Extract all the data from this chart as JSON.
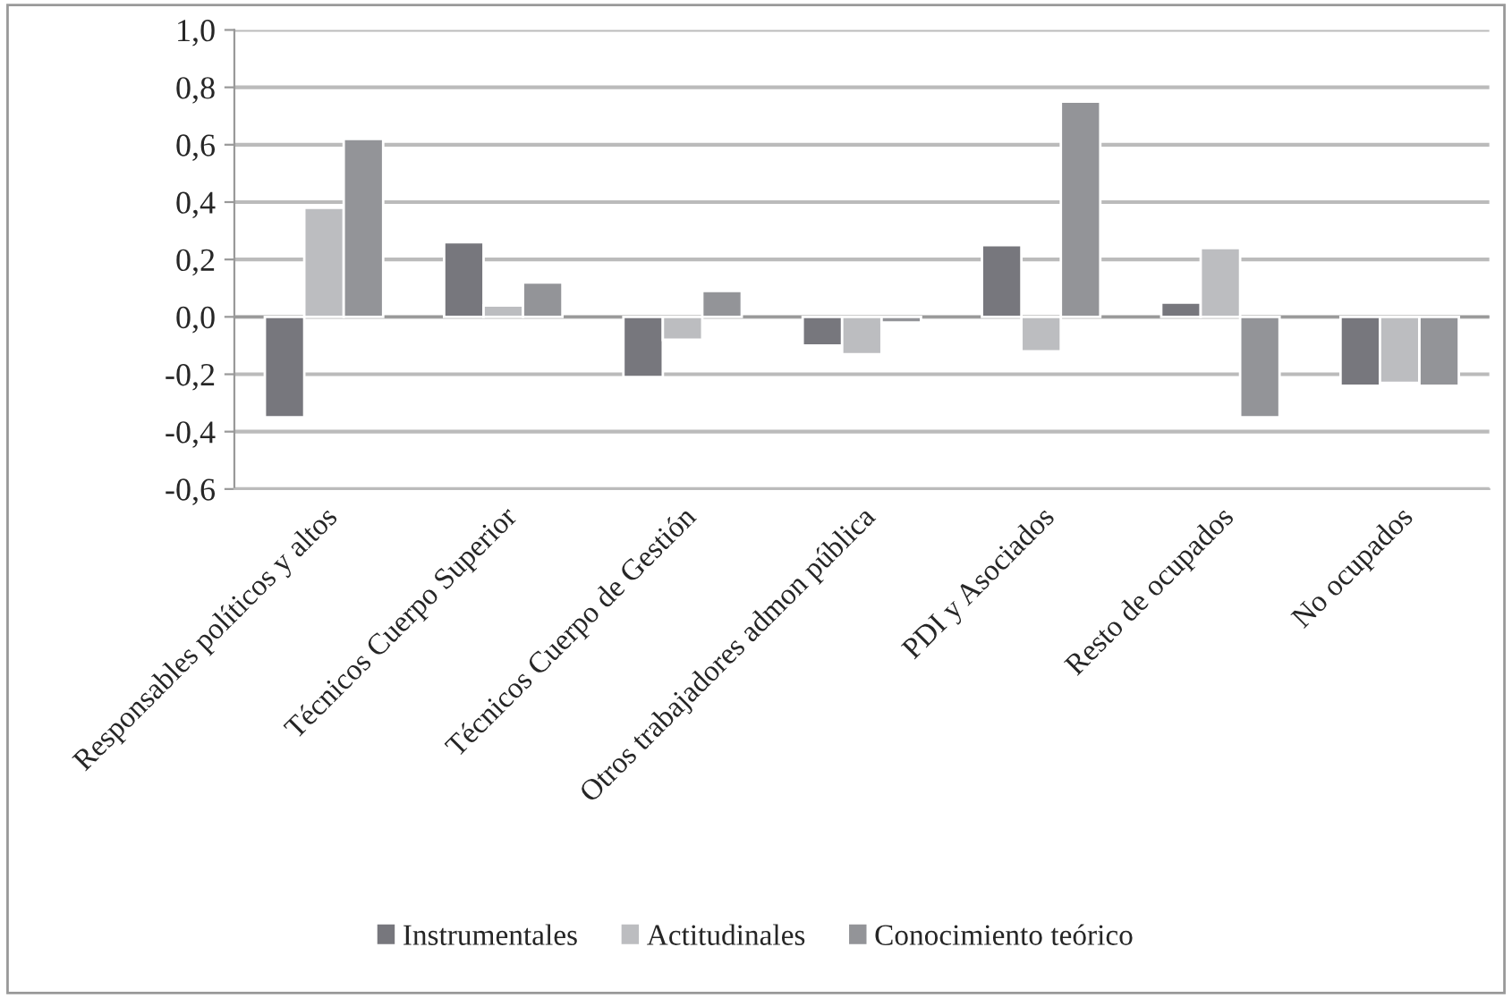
{
  "chart_data": {
    "type": "bar",
    "categories": [
      "Responsables políticos y altos",
      "Técnicos Cuerpo Superior",
      "Técnicos Cuerpo de Gestión",
      "Otros trabajadores admon pública",
      "PDI y Asociados",
      "Resto de ocupados",
      "No ocupados"
    ],
    "series": [
      {
        "name": "Instrumentales",
        "color": "#77777d",
        "values": [
          -0.35,
          0.26,
          -0.21,
          -0.1,
          0.25,
          0.05,
          -0.24
        ]
      },
      {
        "name": "Actitudinales",
        "color": "#bcbdc0",
        "values": [
          0.38,
          0.04,
          -0.08,
          -0.13,
          -0.12,
          0.24,
          -0.23
        ]
      },
      {
        "name": "Conocimiento teórico",
        "color": "#939498",
        "values": [
          0.62,
          0.12,
          0.09,
          -0.02,
          0.75,
          -0.35,
          -0.24
        ]
      }
    ],
    "ylim": [
      -0.6,
      1.0
    ],
    "yticks": [
      {
        "value": -0.6,
        "label": "-0,6"
      },
      {
        "value": -0.4,
        "label": "-0,4"
      },
      {
        "value": -0.2,
        "label": "-0,2"
      },
      {
        "value": 0.0,
        "label": "0,0"
      },
      {
        "value": 0.2,
        "label": "0,2"
      },
      {
        "value": 0.4,
        "label": "0,4"
      },
      {
        "value": 0.6,
        "label": "0,6"
      },
      {
        "value": 0.8,
        "label": "0,8"
      },
      {
        "value": 1.0,
        "label": "1,0"
      }
    ],
    "grid": "y",
    "legend": "bottom"
  }
}
